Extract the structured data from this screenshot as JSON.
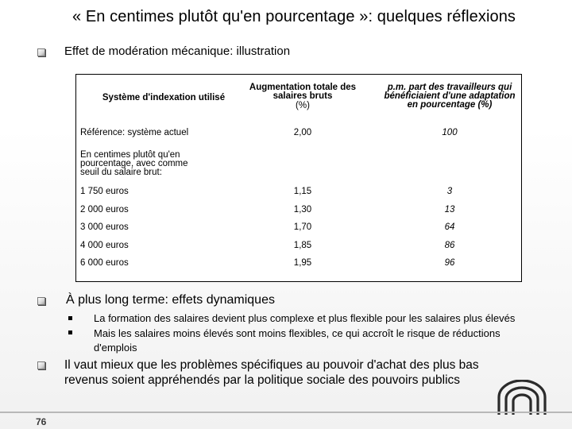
{
  "title": "« En centimes plutôt qu'en pourcentage »: quelques réflexions",
  "bullet1": {
    "text": "Effet de modération mécanique: illustration"
  },
  "table": {
    "headers": {
      "col1": "Système d'indexation utilisé",
      "col2_line1": "Augmentation totale des",
      "col2_line2": "salaires bruts",
      "col2_line3": "(%)",
      "col3_line1": "p.m. part des travailleurs qui",
      "col3_line2": "bénéficiaient d'une adaptation",
      "col3_line3": "en pourcentage (%)"
    },
    "reference": {
      "label": "Référence: système actuel",
      "augmentation": "2,00",
      "part": "100"
    },
    "section_line1": "En centimes plutôt qu'en",
    "section_line2": "pourcentage, avec comme",
    "section_line3": "seuil du salaire brut:",
    "rows": [
      {
        "label": "1 750 euros",
        "augmentation": "1,15",
        "part": "3"
      },
      {
        "label": "2 000 euros",
        "augmentation": "1,30",
        "part": "13"
      },
      {
        "label": "3 000 euros",
        "augmentation": "1,70",
        "part": "64"
      },
      {
        "label": "4 000 euros",
        "augmentation": "1,85",
        "part": "86"
      },
      {
        "label": "6 000 euros",
        "augmentation": "1,95",
        "part": "96"
      }
    ]
  },
  "bullet2": {
    "text": "À plus long terme: effets dynamiques",
    "subitems": [
      "La formation des salaires devient plus complexe et plus flexible pour les salaires plus élevés",
      "Mais les salaires moins élevés sont moins flexibles, ce qui accroît le risque de réductions",
      "d'emplois"
    ]
  },
  "bullet3": {
    "line1": "Il vaut mieux que les problèmes spécifiques au pouvoir d'achat des plus bas",
    "line2": "revenus soient appréhendés par la politique sociale des pouvoirs publics"
  },
  "page_number": "76",
  "colors": {
    "logo": "#2b2b2b",
    "rule": "#b8b8b8"
  }
}
